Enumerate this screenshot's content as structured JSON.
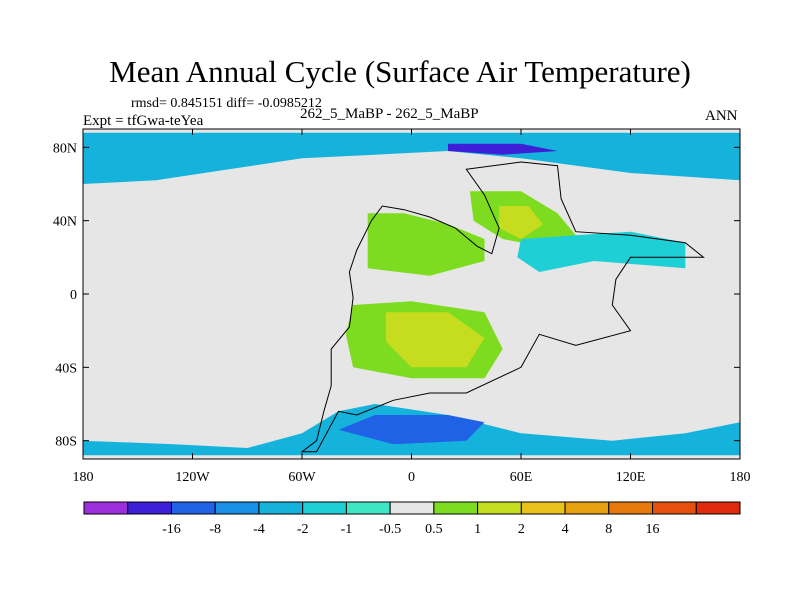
{
  "chart_data": {
    "type": "contour-map",
    "title": "Mean Annual Cycle (Surface Air Temperature)",
    "stats_line": "rmsd= 0.845151 diff= -0.0985212",
    "rmsd": 0.845151,
    "diff": -0.0985212,
    "subtitle": "262_5_MaBP - 262_5_MaBP",
    "left_label": "Expt = tfGwa-teYea",
    "right_label": "ANN",
    "x_ticks": [
      "180",
      "120W",
      "60W",
      "0",
      "60E",
      "120E",
      "180"
    ],
    "x_tick_values": [
      -180,
      -120,
      -60,
      0,
      60,
      120,
      180
    ],
    "y_ticks": [
      "80N",
      "40N",
      "0",
      "40S",
      "80S"
    ],
    "y_tick_values": [
      80,
      40,
      0,
      -40,
      -80
    ],
    "xlim": [
      -180,
      180
    ],
    "ylim": [
      -90,
      90
    ],
    "colorbar": {
      "colors": [
        "#9b2fdc",
        "#3c1fd6",
        "#1f62e6",
        "#1a90e8",
        "#15b3dc",
        "#1fcfd6",
        "#3fe6c4",
        "#e6e6e6",
        "#7ddc1f",
        "#c6dc1f",
        "#e6c21a",
        "#e6a010",
        "#e67a0c",
        "#e6500c",
        "#e02a0c"
      ],
      "labels": [
        "-16",
        "-8",
        "-4",
        "-2",
        "-1",
        "-0.5",
        "0.5",
        "1",
        "2",
        "4",
        "8",
        "16"
      ]
    },
    "regions": [
      {
        "name": "arctic-band",
        "level": -2,
        "polygon": [
          [
            -180,
            88
          ],
          [
            180,
            88
          ],
          [
            180,
            62
          ],
          [
            120,
            66
          ],
          [
            60,
            74
          ],
          [
            20,
            78
          ],
          [
            -20,
            76
          ],
          [
            -60,
            74
          ],
          [
            -100,
            68
          ],
          [
            -140,
            62
          ],
          [
            -180,
            60
          ]
        ]
      },
      {
        "name": "north-pole-core",
        "level": -8,
        "polygon": [
          [
            20,
            82
          ],
          [
            60,
            82
          ],
          [
            80,
            78
          ],
          [
            50,
            76
          ],
          [
            20,
            78
          ]
        ]
      },
      {
        "name": "south-ocean-band",
        "level": -2,
        "polygon": [
          [
            -180,
            -80
          ],
          [
            -180,
            -88
          ],
          [
            180,
            -88
          ],
          [
            180,
            -70
          ],
          [
            150,
            -76
          ],
          [
            110,
            -80
          ],
          [
            60,
            -76
          ],
          [
            20,
            -66
          ],
          [
            -20,
            -60
          ],
          [
            -40,
            -64
          ],
          [
            -60,
            -76
          ],
          [
            -90,
            -84
          ],
          [
            -130,
            -82
          ]
        ]
      },
      {
        "name": "south-ocean-core",
        "level": -4,
        "polygon": [
          [
            -40,
            -74
          ],
          [
            -20,
            -66
          ],
          [
            20,
            -66
          ],
          [
            40,
            -70
          ],
          [
            30,
            -80
          ],
          [
            -10,
            -82
          ]
        ]
      },
      {
        "name": "asia-warm",
        "level": 1,
        "polygon": [
          [
            32,
            56
          ],
          [
            60,
            56
          ],
          [
            80,
            44
          ],
          [
            90,
            32
          ],
          [
            70,
            26
          ],
          [
            50,
            30
          ],
          [
            34,
            40
          ]
        ]
      },
      {
        "name": "asia-core",
        "level": 2,
        "polygon": [
          [
            48,
            48
          ],
          [
            64,
            48
          ],
          [
            72,
            38
          ],
          [
            60,
            30
          ],
          [
            48,
            36
          ]
        ]
      },
      {
        "name": "north-continent-warm",
        "level": 1,
        "polygon": [
          [
            -24,
            44
          ],
          [
            -4,
            44
          ],
          [
            20,
            38
          ],
          [
            40,
            30
          ],
          [
            40,
            18
          ],
          [
            10,
            10
          ],
          [
            -24,
            14
          ]
        ]
      },
      {
        "name": "south-continent-warm",
        "level": 1,
        "polygon": [
          [
            -32,
            -6
          ],
          [
            0,
            -4
          ],
          [
            40,
            -10
          ],
          [
            50,
            -30
          ],
          [
            40,
            -46
          ],
          [
            0,
            -46
          ],
          [
            -32,
            -40
          ],
          [
            -36,
            -22
          ]
        ]
      },
      {
        "name": "south-continent-core",
        "level": 2,
        "polygon": [
          [
            -14,
            -10
          ],
          [
            20,
            -10
          ],
          [
            40,
            -24
          ],
          [
            30,
            -40
          ],
          [
            0,
            -40
          ],
          [
            -14,
            -26
          ]
        ]
      },
      {
        "name": "east-cool-band",
        "level": -1,
        "polygon": [
          [
            60,
            30
          ],
          [
            90,
            32
          ],
          [
            120,
            34
          ],
          [
            150,
            28
          ],
          [
            150,
            14
          ],
          [
            100,
            18
          ],
          [
            70,
            12
          ],
          [
            58,
            20
          ]
        ]
      }
    ],
    "coastline": [
      [
        -52,
        -86
      ],
      [
        -60,
        -86
      ],
      [
        -52,
        -80
      ],
      [
        -48,
        -64
      ],
      [
        -44,
        -50
      ],
      [
        -44,
        -30
      ],
      [
        -34,
        -18
      ],
      [
        -32,
        -2
      ],
      [
        -34,
        12
      ],
      [
        -30,
        24
      ],
      [
        -22,
        40
      ],
      [
        -16,
        48
      ],
      [
        -4,
        46
      ],
      [
        10,
        42
      ],
      [
        24,
        36
      ],
      [
        36,
        26
      ],
      [
        44,
        22
      ],
      [
        48,
        36
      ],
      [
        40,
        54
      ],
      [
        30,
        68
      ],
      [
        60,
        72
      ],
      [
        80,
        70
      ],
      [
        82,
        52
      ],
      [
        90,
        34
      ],
      [
        120,
        32
      ],
      [
        150,
        28
      ],
      [
        160,
        20
      ],
      [
        120,
        20
      ],
      [
        112,
        8
      ],
      [
        110,
        -6
      ],
      [
        120,
        -20
      ],
      [
        90,
        -28
      ],
      [
        70,
        -22
      ],
      [
        60,
        -40
      ],
      [
        30,
        -54
      ],
      [
        10,
        -54
      ],
      [
        -10,
        -58
      ],
      [
        -20,
        -62
      ],
      [
        -30,
        -66
      ],
      [
        -40,
        -64
      ],
      [
        -52,
        -86
      ]
    ]
  }
}
